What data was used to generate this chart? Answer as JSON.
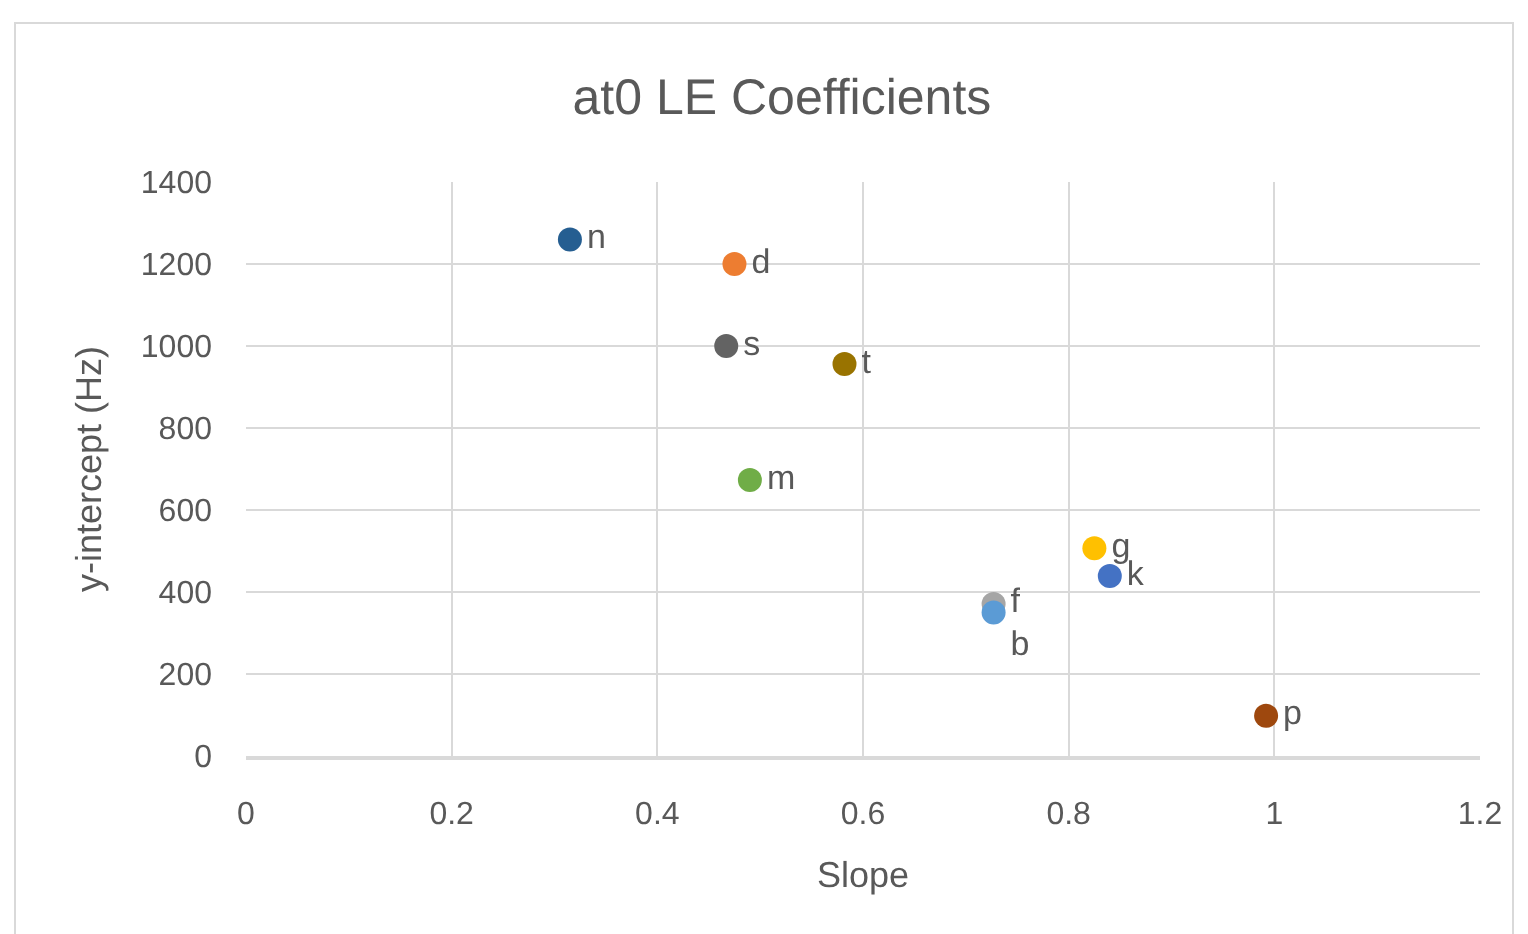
{
  "chart_data": {
    "type": "scatter",
    "title": "at0 LE Coefficients",
    "xlabel": "Slope",
    "ylabel": "y-intercept (Hz)",
    "xlim": [
      0,
      1.2
    ],
    "xticks": [
      0,
      0.2,
      0.4,
      0.6,
      0.8,
      1,
      1.2
    ],
    "ylim": [
      0,
      1400
    ],
    "yticks": [
      0,
      200,
      400,
      600,
      800,
      1000,
      1200,
      1400
    ],
    "grid": true,
    "legend": false,
    "marker": "circle",
    "series": [
      {
        "name": "n",
        "color": "#255e91",
        "x": [
          0.315
        ],
        "values": [
          1260
        ]
      },
      {
        "name": "d",
        "color": "#ed7d31",
        "x": [
          0.475
        ],
        "values": [
          1200
        ]
      },
      {
        "name": "s",
        "color": "#636363",
        "x": [
          0.467
        ],
        "values": [
          1000
        ]
      },
      {
        "name": "t",
        "color": "#997300",
        "x": [
          0.582
        ],
        "values": [
          956
        ]
      },
      {
        "name": "m",
        "color": "#70ad47",
        "x": [
          0.49
        ],
        "values": [
          673
        ]
      },
      {
        "name": "g",
        "color": "#ffc000",
        "x": [
          0.825
        ],
        "values": [
          507
        ]
      },
      {
        "name": "k",
        "color": "#4472c4",
        "x": [
          0.84
        ],
        "values": [
          439
        ]
      },
      {
        "name": "f",
        "color": "#a5a5a5",
        "x": [
          0.727
        ],
        "values": [
          371
        ]
      },
      {
        "name": "b",
        "color": "#5b9bd5",
        "x": [
          0.727
        ],
        "values": [
          350
        ]
      },
      {
        "name": "p",
        "color": "#9e480e",
        "x": [
          0.992
        ],
        "values": [
          98
        ]
      }
    ]
  }
}
